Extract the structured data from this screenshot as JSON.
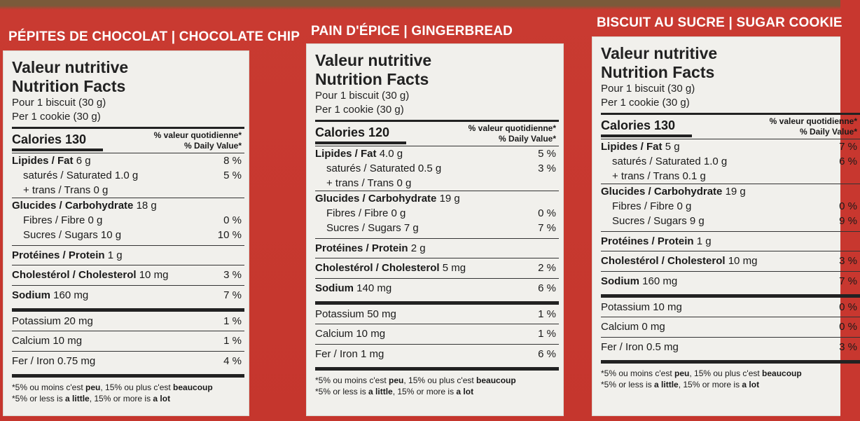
{
  "panels": [
    {
      "flavor": "PÉPITES DE CHOCOLAT | CHOCOLATE CHIP",
      "title_fr": "Valeur nutritive",
      "title_en": "Nutrition Facts",
      "serving_fr": "Pour 1 biscuit (30 g)",
      "serving_en": "Per 1 cookie (30 g)",
      "calories": "Calories 130",
      "dv_fr": "% valeur quotidienne*",
      "dv_en": "% Daily Value*",
      "fat": "Lipides / Fat",
      "fat_amt": "6 g",
      "fat_pct": "8 %",
      "sat": "saturés / Saturated 1.0 g",
      "sat_pct": "5 %",
      "trans": "+ trans / Trans 0 g",
      "carb": "Glucides / Carbohydrate",
      "carb_amt": "18 g",
      "fibre": "Fibres / Fibre 0 g",
      "fibre_pct": "0 %",
      "sugars": "Sucres / Sugars 10 g",
      "sugars_pct": "10 %",
      "protein": "Protéines / Protein",
      "protein_amt": "1 g",
      "chol": "Cholestérol / Cholesterol",
      "chol_amt": "10 mg",
      "chol_pct": "3 %",
      "sodium": "Sodium",
      "sodium_amt": "160 mg",
      "sodium_pct": "7 %",
      "potassium": "Potassium 20 mg",
      "potassium_pct": "1 %",
      "calcium": "Calcium 10 mg",
      "calcium_pct": "1 %",
      "iron": "Fer / Iron 0.75 mg",
      "iron_pct": "4 %",
      "foot_fr_a": "*5% ou moins c'est ",
      "foot_fr_b": "peu",
      "foot_fr_c": ", 15% ou plus c'est ",
      "foot_fr_d": "beaucoup",
      "foot_en_a": "*5% or less is ",
      "foot_en_b": "a little",
      "foot_en_c": ", 15% or more is ",
      "foot_en_d": "a lot"
    },
    {
      "flavor": "PAIN D'ÉPICE | GINGERBREAD",
      "title_fr": "Valeur nutritive",
      "title_en": "Nutrition Facts",
      "serving_fr": "Pour 1 biscuit (30 g)",
      "serving_en": "Per 1 cookie (30 g)",
      "calories": "Calories 120",
      "dv_fr": "% valeur quotidienne*",
      "dv_en": "% Daily Value*",
      "fat": "Lipides / Fat",
      "fat_amt": "4.0 g",
      "fat_pct": "5 %",
      "sat": "saturés / Saturated 0.5 g",
      "sat_pct": "3 %",
      "trans": "+ trans / Trans 0 g",
      "carb": "Glucides / Carbohydrate",
      "carb_amt": "19 g",
      "fibre": "Fibres / Fibre 0 g",
      "fibre_pct": "0 %",
      "sugars": "Sucres / Sugars 7 g",
      "sugars_pct": "7 %",
      "protein": "Protéines / Protein",
      "protein_amt": "2 g",
      "chol": "Cholestérol / Cholesterol",
      "chol_amt": "5 mg",
      "chol_pct": "2 %",
      "sodium": "Sodium",
      "sodium_amt": "140 mg",
      "sodium_pct": "6 %",
      "potassium": "Potassium 50 mg",
      "potassium_pct": "1 %",
      "calcium": "Calcium 10 mg",
      "calcium_pct": "1 %",
      "iron": "Fer / Iron 1 mg",
      "iron_pct": "6 %",
      "foot_fr_a": "*5% ou moins c'est ",
      "foot_fr_b": "peu",
      "foot_fr_c": ", 15% ou plus c'est ",
      "foot_fr_d": "beaucoup",
      "foot_en_a": "*5% or less is ",
      "foot_en_b": "a little",
      "foot_en_c": ", 15% or more is ",
      "foot_en_d": "a lot"
    },
    {
      "flavor": "BISCUIT AU SUCRE | SUGAR COOKIE",
      "title_fr": "Valeur nutritive",
      "title_en": "Nutrition Facts",
      "serving_fr": "Pour 1 biscuit (30 g)",
      "serving_en": "Per 1 cookie (30 g)",
      "calories": "Calories 130",
      "dv_fr": "% valeur quotidienne*",
      "dv_en": "% Daily Value*",
      "fat": "Lipides / Fat",
      "fat_amt": "5 g",
      "fat_pct": "7 %",
      "sat": "saturés / Saturated 1.0 g",
      "sat_pct": "6 %",
      "trans": "+ trans / Trans 0.1 g",
      "carb": "Glucides / Carbohydrate",
      "carb_amt": "19 g",
      "fibre": "Fibres / Fibre 0 g",
      "fibre_pct": "0 %",
      "sugars": "Sucres / Sugars 9 g",
      "sugars_pct": "9 %",
      "protein": "Protéines / Protein",
      "protein_amt": "1 g",
      "chol": "Cholestérol / Cholesterol",
      "chol_amt": "10 mg",
      "chol_pct": "3 %",
      "sodium": "Sodium",
      "sodium_amt": "160 mg",
      "sodium_pct": "7 %",
      "potassium": "Potassium 10 mg",
      "potassium_pct": "0 %",
      "calcium": "Calcium 0 mg",
      "calcium_pct": "0 %",
      "iron": "Fer / Iron 0.5 mg",
      "iron_pct": "3 %",
      "foot_fr_a": "*5% ou moins c'est ",
      "foot_fr_b": "peu",
      "foot_fr_c": ", 15% ou plus c'est ",
      "foot_fr_d": "beaucoup",
      "foot_en_a": "*5% or less is ",
      "foot_en_b": "a little",
      "foot_en_c": ", 15% or more is ",
      "foot_en_d": "a lot"
    }
  ]
}
